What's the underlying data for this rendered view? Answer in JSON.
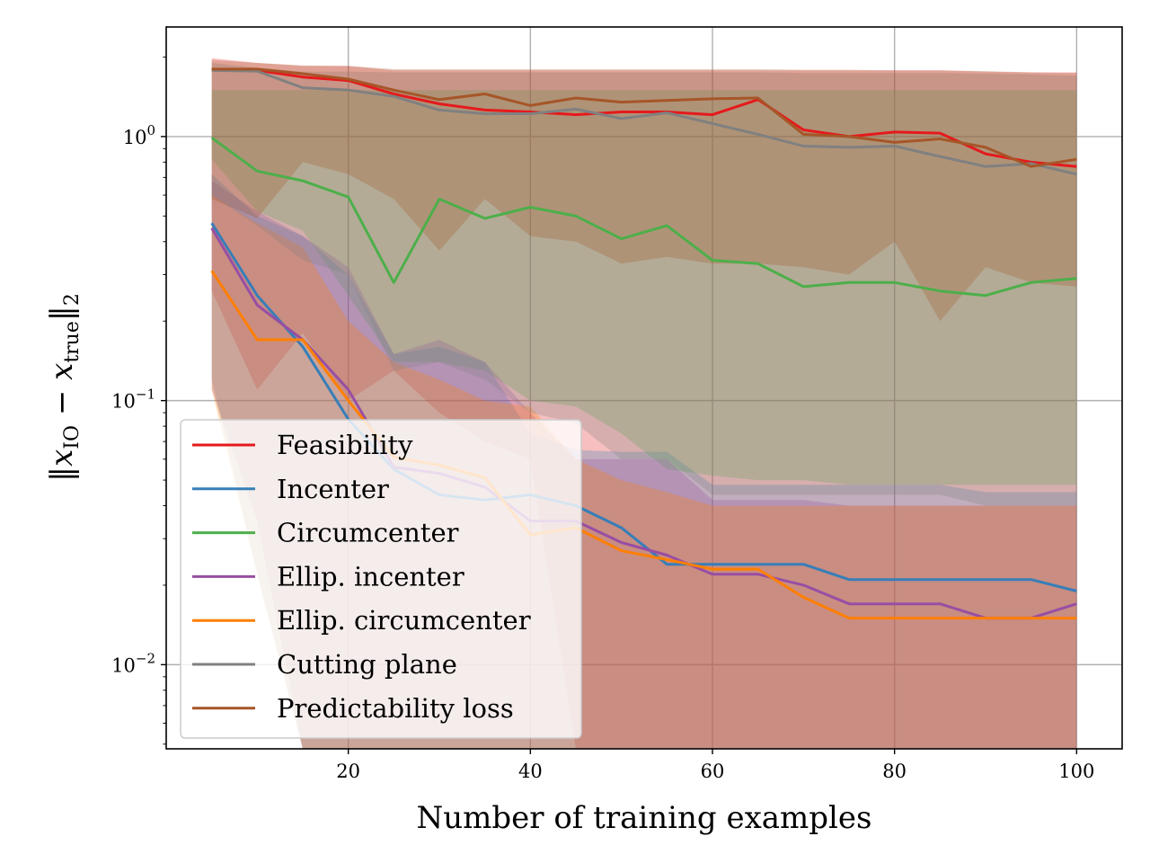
{
  "chart_data": {
    "type": "line",
    "title": "",
    "xlabel": "Number of training examples",
    "ylabel": "||x_IO - x_true||_2",
    "ylabel_parts": {
      "open": "‖",
      "x1": "x",
      "sub1": "IO",
      "minus": " − ",
      "x2": "x",
      "sub2": "true",
      "close": "‖",
      "sub3": "2"
    },
    "yscale": "log",
    "xlim": [
      0,
      105
    ],
    "ylim": [
      0.0048,
      2.6
    ],
    "xticks": [
      20,
      40,
      60,
      80,
      100
    ],
    "xtick_labels": [
      "20",
      "40",
      "60",
      "80",
      "100"
    ],
    "yticks": [
      0.01,
      0.1,
      1
    ],
    "ytick_labels": [
      {
        "base": "10",
        "exp": "−2"
      },
      {
        "base": "10",
        "exp": "−1"
      },
      {
        "base": "10",
        "exp": "0"
      }
    ],
    "grid": true,
    "legend_position": "lower-left",
    "x": [
      5,
      10,
      15,
      20,
      25,
      30,
      35,
      40,
      45,
      50,
      55,
      60,
      65,
      70,
      75,
      80,
      85,
      90,
      95,
      100
    ],
    "series": [
      {
        "name": "Feasibility",
        "color": "#e41a1c",
        "values": [
          1.8,
          1.78,
          1.68,
          1.63,
          1.45,
          1.33,
          1.26,
          1.24,
          1.21,
          1.24,
          1.24,
          1.21,
          1.38,
          1.06,
          1.0,
          1.04,
          1.03,
          0.86,
          0.8,
          0.77
        ],
        "band_low": [
          0.26,
          0.11,
          0.18,
          0.1,
          0.13,
          0.09,
          0.07,
          0.06,
          0.0048,
          0.0048,
          0.0048,
          0.0048,
          0.0048,
          0.0048,
          0.0048,
          0.0048,
          0.0048,
          0.0048,
          0.0048,
          0.0048
        ],
        "band_high": [
          1.98,
          1.9,
          1.85,
          1.85,
          1.78,
          1.78,
          1.78,
          1.78,
          1.78,
          1.78,
          1.78,
          1.78,
          1.78,
          1.78,
          1.78,
          1.78,
          1.78,
          1.76,
          1.75,
          1.75
        ]
      },
      {
        "name": "Incenter",
        "color": "#377eb8",
        "values": [
          0.47,
          0.25,
          0.16,
          0.085,
          0.055,
          0.044,
          0.042,
          0.044,
          0.04,
          0.033,
          0.024,
          0.024,
          0.024,
          0.024,
          0.021,
          0.021,
          0.021,
          0.021,
          0.021,
          0.019
        ],
        "band_low": [
          0.12,
          0.022,
          0.0048,
          0.0048,
          0.0048,
          0.0048,
          0.0048,
          0.0048,
          0.0048,
          0.0048,
          0.0048,
          0.0048,
          0.0048,
          0.0048,
          0.0048,
          0.0048,
          0.0048,
          0.0048,
          0.0048,
          0.0048
        ],
        "band_high": [
          0.72,
          0.5,
          0.42,
          0.3,
          0.15,
          0.16,
          0.14,
          0.075,
          0.065,
          0.064,
          0.064,
          0.048,
          0.048,
          0.048,
          0.048,
          0.048,
          0.048,
          0.045,
          0.045,
          0.045
        ]
      },
      {
        "name": "Circumcenter",
        "color": "#4daf4a",
        "values": [
          0.99,
          0.74,
          0.68,
          0.59,
          0.28,
          0.58,
          0.49,
          0.54,
          0.5,
          0.41,
          0.46,
          0.34,
          0.33,
          0.27,
          0.28,
          0.28,
          0.26,
          0.25,
          0.28,
          0.29
        ],
        "band_low": [
          0.82,
          0.52,
          0.44,
          0.25,
          0.14,
          0.14,
          0.13,
          0.1,
          0.095,
          0.075,
          0.055,
          0.052,
          0.05,
          0.05,
          0.048,
          0.048,
          0.048,
          0.048,
          0.048,
          0.048
        ],
        "band_high": [
          1.5,
          1.5,
          1.5,
          1.5,
          1.5,
          1.5,
          1.5,
          1.5,
          1.5,
          1.5,
          1.5,
          1.5,
          1.5,
          1.5,
          1.5,
          1.5,
          1.5,
          1.5,
          1.5,
          1.5
        ]
      },
      {
        "name": "Ellip. incenter",
        "color": "#984ea3",
        "values": [
          0.45,
          0.23,
          0.17,
          0.11,
          0.056,
          0.053,
          0.047,
          0.035,
          0.035,
          0.029,
          0.026,
          0.022,
          0.022,
          0.02,
          0.017,
          0.017,
          0.017,
          0.015,
          0.015,
          0.017
        ],
        "band_low": [
          0.11,
          0.035,
          0.0048,
          0.0048,
          0.0048,
          0.0048,
          0.0048,
          0.0048,
          0.0048,
          0.0048,
          0.0048,
          0.0048,
          0.0048,
          0.0048,
          0.0048,
          0.0048,
          0.0048,
          0.0048,
          0.0048,
          0.0048
        ],
        "band_high": [
          0.68,
          0.52,
          0.42,
          0.32,
          0.15,
          0.17,
          0.14,
          0.09,
          0.06,
          0.06,
          0.06,
          0.042,
          0.042,
          0.042,
          0.04,
          0.04,
          0.04,
          0.04,
          0.04,
          0.04
        ]
      },
      {
        "name": "Ellip. circumcenter",
        "color": "#ff7f00",
        "values": [
          0.31,
          0.17,
          0.17,
          0.1,
          0.061,
          0.057,
          0.051,
          0.031,
          0.033,
          0.027,
          0.025,
          0.023,
          0.023,
          0.018,
          0.015,
          0.015,
          0.015,
          0.015,
          0.015,
          0.015
        ],
        "band_low": [
          0.11,
          0.022,
          0.0048,
          0.0048,
          0.0048,
          0.0048,
          0.0048,
          0.0048,
          0.0048,
          0.0048,
          0.0048,
          0.0048,
          0.0048,
          0.0048,
          0.0048,
          0.0048,
          0.0048,
          0.0048,
          0.0048,
          0.0048
        ],
        "band_high": [
          0.6,
          0.47,
          0.38,
          0.2,
          0.14,
          0.12,
          0.1,
          0.095,
          0.06,
          0.05,
          0.045,
          0.04,
          0.04,
          0.04,
          0.04,
          0.04,
          0.04,
          0.04,
          0.04,
          0.04
        ]
      },
      {
        "name": "Cutting plane",
        "color": "#808080",
        "values": [
          1.78,
          1.77,
          1.53,
          1.5,
          1.42,
          1.26,
          1.22,
          1.22,
          1.27,
          1.17,
          1.23,
          1.12,
          1.02,
          0.92,
          0.91,
          0.92,
          0.84,
          0.77,
          0.79,
          0.72
        ],
        "band_low": [
          0.6,
          0.46,
          0.34,
          0.3,
          0.13,
          0.14,
          0.12,
          0.09,
          0.082,
          0.06,
          0.06,
          0.044,
          0.044,
          0.044,
          0.044,
          0.044,
          0.044,
          0.04,
          0.04,
          0.04
        ],
        "band_high": [
          1.9,
          1.82,
          1.76,
          1.76,
          1.75,
          1.75,
          1.75,
          1.75,
          1.75,
          1.75,
          1.75,
          1.75,
          1.75,
          1.74,
          1.74,
          1.74,
          1.74,
          1.73,
          1.72,
          1.7
        ]
      },
      {
        "name": "Predictability loss",
        "color": "#a65628",
        "values": [
          1.8,
          1.8,
          1.73,
          1.65,
          1.5,
          1.38,
          1.45,
          1.31,
          1.4,
          1.35,
          1.37,
          1.39,
          1.4,
          1.02,
          1.0,
          0.95,
          0.98,
          0.91,
          0.77,
          0.82
        ],
        "band_low": [
          0.58,
          0.49,
          0.8,
          0.72,
          0.58,
          0.37,
          0.58,
          0.42,
          0.4,
          0.33,
          0.35,
          0.33,
          0.33,
          0.32,
          0.3,
          0.4,
          0.2,
          0.32,
          0.28,
          0.27
        ],
        "band_high": [
          1.95,
          1.9,
          1.86,
          1.85,
          1.8,
          1.8,
          1.8,
          1.8,
          1.8,
          1.8,
          1.8,
          1.8,
          1.8,
          1.79,
          1.79,
          1.78,
          1.78,
          1.77,
          1.75,
          1.74
        ]
      }
    ]
  }
}
